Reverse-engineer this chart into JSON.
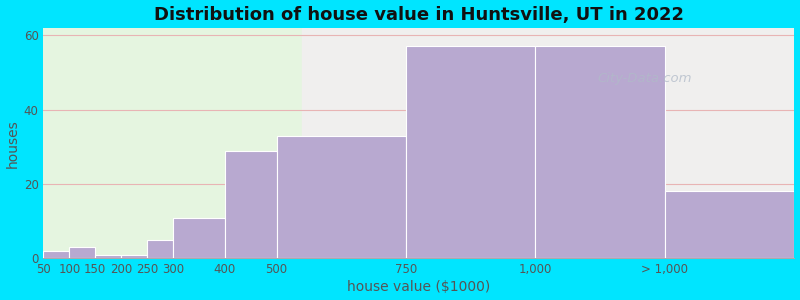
{
  "title": "Distribution of house value in Huntsville, UT in 2022",
  "xlabel": "house value ($1000)",
  "ylabel": "houses",
  "bar_labels": [
    "50",
    "100",
    "150",
    "200",
    "250",
    "300",
    "400",
    "500",
    "750",
    "1,000",
    "> 1,000"
  ],
  "bar_heights": [
    2,
    3,
    1,
    1,
    5,
    11,
    29,
    33,
    57,
    57,
    18
  ],
  "bar_widths": [
    50,
    50,
    50,
    50,
    50,
    100,
    100,
    250,
    250,
    250,
    250
  ],
  "bar_lefts": [
    50,
    100,
    150,
    200,
    250,
    300,
    400,
    500,
    750,
    1000,
    1250
  ],
  "bar_color": "#b8a9d0",
  "bar_edge_color": "#ffffff",
  "ylim": [
    0,
    62
  ],
  "yticks": [
    0,
    20,
    40,
    60
  ],
  "xlim": [
    50,
    1500
  ],
  "tick_positions": [
    50,
    100,
    150,
    200,
    250,
    300,
    400,
    500,
    750,
    1000,
    1250
  ],
  "background_color": "#00e5ff",
  "plot_bg_color_left": "#e5f5e0",
  "plot_bg_color_right": "#f0efee",
  "bg_split_x": 550,
  "title_fontsize": 13,
  "axis_fontsize": 10,
  "tick_fontsize": 8.5,
  "grid_color": "#e8b4b4",
  "watermark_text": "City-Data.com",
  "watermark_color": "#b0bac8",
  "watermark_alpha": 0.75
}
